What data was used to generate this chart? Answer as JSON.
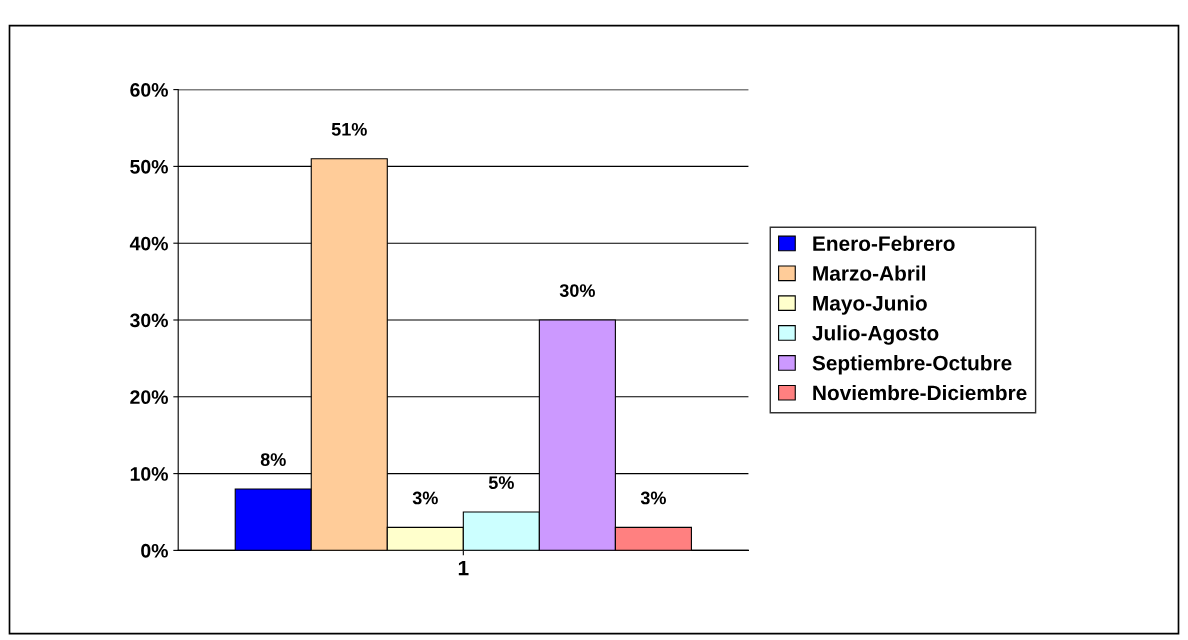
{
  "chart_data": {
    "type": "bar",
    "categories": [
      "1"
    ],
    "series": [
      {
        "name": "Enero-Febrero",
        "color": "#0000ff",
        "values": [
          8
        ],
        "value_labels": [
          "8%"
        ]
      },
      {
        "name": "Marzo-Abril",
        "color": "#ffcc99",
        "values": [
          51
        ],
        "value_labels": [
          "51%"
        ]
      },
      {
        "name": "Mayo-Junio",
        "color": "#ffffcc",
        "values": [
          3
        ],
        "value_labels": [
          "3%"
        ]
      },
      {
        "name": "Julio-Agosto",
        "color": "#ccffff",
        "values": [
          5
        ],
        "value_labels": [
          "5%"
        ]
      },
      {
        "name": "Septiembre-Octubre",
        "color": "#cc99ff",
        "values": [
          30
        ],
        "value_labels": [
          "30%"
        ]
      },
      {
        "name": "Noviembre-Diciembre",
        "color": "#ff8080",
        "values": [
          3
        ],
        "value_labels": [
          "3%"
        ]
      }
    ],
    "ylim": [
      0,
      60
    ],
    "yticks": [
      {
        "value": 0,
        "label": "0%"
      },
      {
        "value": 10,
        "label": "10%"
      },
      {
        "value": 20,
        "label": "20%"
      },
      {
        "value": 30,
        "label": "30%"
      },
      {
        "value": 40,
        "label": "40%"
      },
      {
        "value": 50,
        "label": "50%"
      },
      {
        "value": 60,
        "label": "60%"
      }
    ],
    "grid": "y",
    "legend": "right"
  }
}
